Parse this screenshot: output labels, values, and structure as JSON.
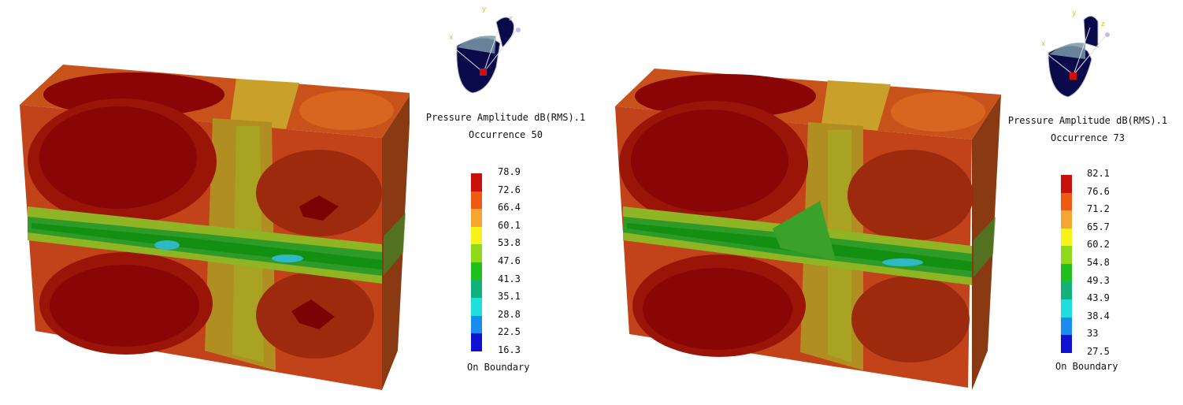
{
  "panels": [
    {
      "title": "Pressure Amplitude dB(RMS).1",
      "subtitle": "Occurrence 50",
      "legend_values": [
        "78.9",
        "72.6",
        "66.4",
        "60.1",
        "53.8",
        "47.6",
        "41.3",
        "35.1",
        "28.8",
        "22.5",
        "16.3"
      ],
      "footer": "On Boundary",
      "triad_axes": {
        "x": "x",
        "y": "y",
        "z": "z"
      }
    },
    {
      "title": "Pressure Amplitude dB(RMS).1",
      "subtitle": "Occurrence 73",
      "legend_values": [
        "82.1",
        "76.6",
        "71.2",
        "65.7",
        "60.2",
        "54.8",
        "49.3",
        "43.9",
        "38.4",
        "33",
        "27.5"
      ],
      "footer": "On Boundary",
      "triad_axes": {
        "x": "x",
        "y": "y",
        "z": "z"
      }
    }
  ],
  "legend_colors": [
    "#c8100c",
    "#ef5a12",
    "#f5a532",
    "#f6f21a",
    "#8fd81a",
    "#1fbf1f",
    "#12b07a",
    "#20dede",
    "#1a8cf0",
    "#1010d0"
  ],
  "colors": {
    "hot": "#8a0606",
    "warm": "#c2431a",
    "mid": "#d07a20",
    "olive": "#b5a021",
    "yellowgreen": "#9fb22a",
    "green": "#2aa12a",
    "cyan": "#2fb9c7"
  }
}
